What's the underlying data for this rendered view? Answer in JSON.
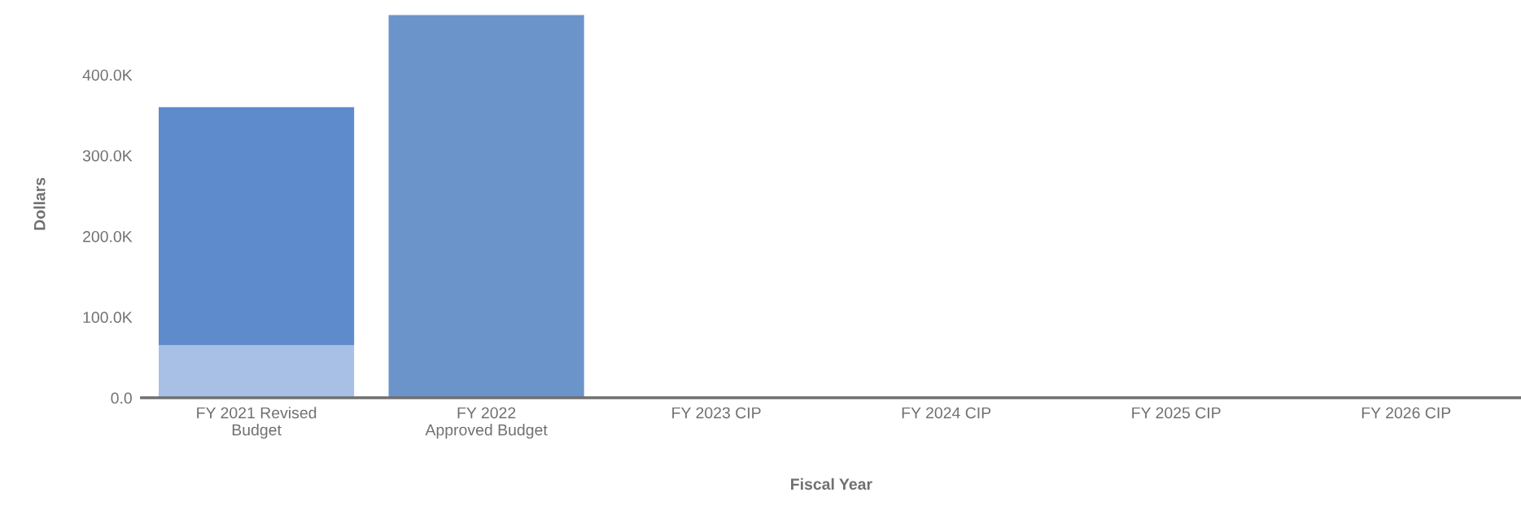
{
  "chart_data": {
    "type": "bar",
    "stacked": true,
    "xlabel": "Fiscal Year",
    "ylabel": "Dollars",
    "categories": [
      "FY 2021 Revised\nBudget",
      "FY 2022\nApproved Budget",
      "FY 2023 CIP",
      "FY 2024 CIP",
      "FY 2025 CIP",
      "FY 2026 CIP"
    ],
    "series": [
      {
        "colors": [
          "#a9c0e6",
          "#6b94cb",
          null,
          null,
          null,
          null
        ],
        "values": [
          65000,
          474000,
          null,
          null,
          null,
          null
        ]
      },
      {
        "color": "#5d8bcb",
        "values": [
          295000,
          null,
          null,
          null,
          null,
          null
        ]
      }
    ],
    "ylim": [
      0,
      480000
    ],
    "yticks": [
      {
        "value": 0,
        "label": "0.0"
      },
      {
        "value": 100000,
        "label": "100.0K"
      },
      {
        "value": 200000,
        "label": "200.0K"
      },
      {
        "value": 300000,
        "label": "300.0K"
      },
      {
        "value": 400000,
        "label": "400.0K"
      }
    ],
    "grid": false,
    "legend": false
  }
}
